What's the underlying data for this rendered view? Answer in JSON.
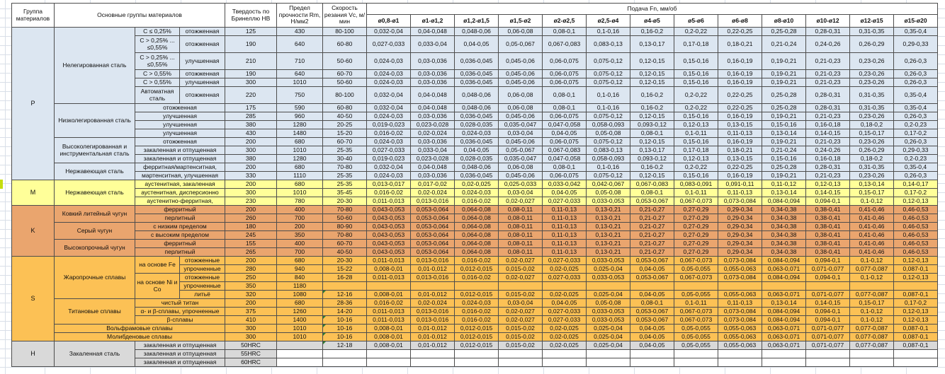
{
  "header": {
    "group": "Группа материалов",
    "main_groups": "Основные группы материалов",
    "hardness": "Твердость по Бринеллю НВ",
    "strength": "Предел прочности Rm, Н/мм2",
    "speed": "Скорость резания Vc, м/мин",
    "feed": "Подача Fn, мм/об",
    "diameters": [
      "ø0,8-ø1",
      "ø1-ø1,2",
      "ø1,2-ø1,5",
      "ø1,5-ø2",
      "ø2-ø2,5",
      "ø2,5-ø4",
      "ø4-ø5",
      "ø5-ø6",
      "ø6-ø8",
      "ø8-ø10",
      "ø10-ø12",
      "ø12-ø15",
      "ø15-ø20"
    ]
  },
  "colors": {
    "group_P": "#dce6f1",
    "group_M": "#ffff99",
    "group_K": "#eaa56e",
    "group_S": "#fcc155",
    "group_H": "#d9d9d9",
    "comment_marker": "#2e7d32",
    "left_highlight": "#c6dd0e",
    "gridline": "#d9dfe8"
  },
  "feed_sets": {
    "A": [
      "0,032-0,04",
      "0,04-0,048",
      "0,048-0,06",
      "0,06-0,08",
      "0,08-0,1",
      "0,1-0,16",
      "0,16-0,2",
      "0,2-0,22",
      "0,22-0,25",
      "0,25-0,28",
      "0,28-0,31",
      "0,31-0,35",
      "0,35-0,4"
    ],
    "B": [
      "0,027-0,033",
      "0,033-0,04",
      "0,04-0,05",
      "0,05-0,067",
      "0,067-0,083",
      "0,083-0,13",
      "0,13-0,17",
      "0,17-0,18",
      "0,18-0,21",
      "0,21-0,24",
      "0,24-0,26",
      "0,26-0,29",
      "0,29-0,33"
    ],
    "C": [
      "0,024-0,03",
      "0,03-0,036",
      "0,036-0,045",
      "0,045-0,06",
      "0,06-0,075",
      "0,075-0,12",
      "0,12-0,15",
      "0,15-0,16",
      "0,16-0,19",
      "0,19-0,21",
      "0,21-0,23",
      "0,23-0,26",
      "0,26-0,3"
    ],
    "D": [
      "0,019-0,023",
      "0,023-0,028",
      "0,028-0,035",
      "0,035-0,047",
      "0,047-0,058",
      "0,058-0,093",
      "0,093-0,12",
      "0,12-0,13",
      "0,13-0,15",
      "0,15-0,16",
      "0,16-0,18",
      "0,18-0,2",
      "0,2-0,23"
    ],
    "E": [
      "0,016-0,02",
      "0,02-0,024",
      "0,024-0,03",
      "0,03-0,04",
      "0,04-0,05",
      "0,05-0,08",
      "0,08-0,1",
      "0,1-0,11",
      "0,11-0,13",
      "0,13-0,14",
      "0,14-0,15",
      "0,15-0,17",
      "0,17-0,2"
    ],
    "F": [
      "0,013-0,017",
      "0,017-0,02",
      "0,02-0,025",
      "0,025-0,033",
      "0,033-0,042",
      "0,042-0,067",
      "0,067-0,083",
      "0,083-0,091",
      "0,091-0,11",
      "0,11-0,12",
      "0,12-0,13",
      "0,13-0,14",
      "0,14-0,17"
    ],
    "G": [
      "0,011-0,013",
      "0,013-0,016",
      "0,016-0,02",
      "0,02-0,027",
      "0,027-0,033",
      "0,033-0,053",
      "0,053-0,067",
      "0,067-0,073",
      "0,073-0,084",
      "0,084-0,094",
      "0,094-0,1",
      "0,1-0,12",
      "0,12-0,13"
    ],
    "H": [
      "0,008-0,01",
      "0,01-0,012",
      "0,012-0,015",
      "0,015-0,02",
      "0,02-0,025",
      "0,025-0,04",
      "0,04-0,05",
      "0,05-0,055",
      "0,055-0,063",
      "0,063-0,071",
      "0,071-0,077",
      "0,077-0,087",
      "0,087-0,1"
    ],
    "K": [
      "0,043-0,053",
      "0,053-0,064",
      "0,064-0,08",
      "0,08-0,11",
      "0,11-0,13",
      "0,13-0,21",
      "0,21-0,27",
      "0,27-0,29",
      "0,29-0,34",
      "0,34-0,38",
      "0,38-0,41",
      "0,41-0,46",
      "0,46-0,53"
    ],
    "X": [
      "",
      "",
      "",
      "",
      "",
      "",
      "",
      "",
      "",
      "",
      "",
      "",
      ""
    ]
  },
  "rows": [
    {
      "g": "P",
      "left": [
        {
          "t": "P",
          "rs": 15,
          "name": "group-cell",
          "cls": "glab"
        },
        {
          "t": "Нелегированная сталь",
          "rs": 6,
          "name": "family-cell",
          "cls": "wrap"
        },
        {
          "t": "C ≤ 0,25%",
          "name": "subgroup-cell",
          "cls": "wrap"
        },
        {
          "t": "отожженная",
          "name": "treatment-cell"
        }
      ],
      "hb": "125",
      "rm": "430",
      "vc": "80-100",
      "feeds": "A"
    },
    {
      "g": "P",
      "h2": 1,
      "left": [
        {
          "t": "C > 0,25% ... ≤0,55%",
          "name": "subgroup-cell",
          "cls": "wrap"
        },
        {
          "t": "отожженная",
          "name": "treatment-cell"
        }
      ],
      "hb": "190",
      "rm": "640",
      "vc": "60-80",
      "feeds": "B"
    },
    {
      "g": "P",
      "h2": 1,
      "left": [
        {
          "t": "C > 0,25% ... ≤0,55%",
          "name": "subgroup-cell",
          "cls": "wrap"
        },
        {
          "t": "улучшенная",
          "name": "treatment-cell"
        }
      ],
      "hb": "210",
      "rm": "710",
      "vc": "50-60",
      "feeds": "C"
    },
    {
      "g": "P",
      "left": [
        {
          "t": "C > 0,55%",
          "name": "subgroup-cell"
        },
        {
          "t": "отожженная",
          "name": "treatment-cell"
        }
      ],
      "hb": "190",
      "rm": "640",
      "vc": "60-70",
      "feeds": "C"
    },
    {
      "g": "P",
      "left": [
        {
          "t": "C > 0,55%",
          "name": "subgroup-cell"
        },
        {
          "t": "улучшенная",
          "name": "treatment-cell"
        }
      ],
      "hb": "300",
      "rm": "1010",
      "vc": "50-60",
      "feeds": "C"
    },
    {
      "g": "P",
      "h2": 1,
      "left": [
        {
          "t": "Автоматная сталь",
          "name": "subgroup-cell",
          "cls": "wrap"
        },
        {
          "t": "отожженная",
          "name": "treatment-cell"
        }
      ],
      "hb": "220",
      "rm": "750",
      "vc": "80-100",
      "feeds": "A"
    },
    {
      "g": "P",
      "left": [
        {
          "t": "Низколегированная сталь",
          "rs": 4,
          "name": "family-cell",
          "cls": "wrap"
        },
        {
          "t": "отожженная",
          "cs": 2,
          "name": "treatment-cell"
        }
      ],
      "hb": "175",
      "rm": "590",
      "vc": "60-80",
      "feeds": "A"
    },
    {
      "g": "P",
      "left": [
        {
          "t": "улучшенная",
          "cs": 2,
          "name": "treatment-cell"
        }
      ],
      "hb": "285",
      "rm": "960",
      "vc": "40-50",
      "feeds": "C"
    },
    {
      "g": "P",
      "left": [
        {
          "t": "улучшенная",
          "cs": 2,
          "name": "treatment-cell"
        }
      ],
      "hb": "380",
      "rm": "1280",
      "vc": "20-25",
      "feeds": "D"
    },
    {
      "g": "P",
      "left": [
        {
          "t": "улучшенная",
          "cs": 2,
          "name": "treatment-cell"
        }
      ],
      "hb": "430",
      "rm": "1480",
      "vc": "15-20",
      "feeds": "E"
    },
    {
      "g": "P",
      "left": [
        {
          "t": "Высоколегированная и инструментальная сталь",
          "rs": 3,
          "name": "family-cell",
          "cls": "wrap"
        },
        {
          "t": "отожженная",
          "cs": 2,
          "name": "treatment-cell"
        }
      ],
      "hb": "200",
      "rm": "680",
      "vc": "60-70",
      "feeds": "C"
    },
    {
      "g": "P",
      "left": [
        {
          "t": "закаленная и отпущенная",
          "cs": 2,
          "name": "treatment-cell"
        }
      ],
      "hb": "300",
      "rm": "1010",
      "vc": "25-35",
      "feeds": "B"
    },
    {
      "g": "P",
      "left": [
        {
          "t": "закаленная и отпущенная",
          "cs": 2,
          "name": "treatment-cell"
        }
      ],
      "hb": "380",
      "rm": "1280",
      "vc": "30-40",
      "feeds": "D"
    },
    {
      "g": "P",
      "left": [
        {
          "t": "Нержавеющая сталь",
          "rs": 2,
          "name": "family-cell",
          "cls": "wrap"
        },
        {
          "t": "ферритная/мартенситная,",
          "cs": 2,
          "name": "treatment-cell"
        }
      ],
      "hb": "200",
      "rm": "680",
      "vc": "70-80",
      "feeds": "A"
    },
    {
      "g": "P",
      "left": [
        {
          "t": "мартенситная, улучшенная",
          "cs": 2,
          "name": "treatment-cell"
        }
      ],
      "hb": "330",
      "rm": "1110",
      "vc": "25-35",
      "feeds": "C"
    },
    {
      "g": "M",
      "left": [
        {
          "t": "M",
          "rs": 3,
          "name": "group-cell",
          "cls": "glab"
        },
        {
          "t": "Нержавеющая сталь",
          "rs": 3,
          "name": "family-cell",
          "cls": "wrap"
        },
        {
          "t": "аустенитная, закаленная",
          "cs": 2,
          "name": "treatment-cell"
        }
      ],
      "hb": "200",
      "rm": "680",
      "vc": "25-35",
      "feeds": "F"
    },
    {
      "g": "M",
      "left": [
        {
          "t": "аустенитная, дисперсионно",
          "cs": 2,
          "name": "treatment-cell"
        }
      ],
      "hb": "300",
      "rm": "1010",
      "vc": "35-45",
      "feeds": "E"
    },
    {
      "g": "M",
      "left": [
        {
          "t": "аустенитно-ферритная,",
          "cs": 2,
          "name": "treatment-cell"
        }
      ],
      "hb": "230",
      "rm": "780",
      "vc": "20-30",
      "feeds": "G"
    },
    {
      "g": "K",
      "left": [
        {
          "t": "K",
          "rs": 6,
          "name": "group-cell",
          "cls": "glab"
        },
        {
          "t": "Ковкий литейный чугун",
          "rs": 2,
          "name": "family-cell",
          "cls": "wrap"
        },
        {
          "t": "ферритный",
          "cs": 2,
          "name": "treatment-cell"
        }
      ],
      "hb": "200",
      "rm": "400",
      "vc": "70-80",
      "feeds": "K"
    },
    {
      "g": "K",
      "left": [
        {
          "t": "перлитный",
          "cs": 2,
          "name": "treatment-cell"
        }
      ],
      "hb": "260",
      "rm": "700",
      "vc": "50-60",
      "feeds": "K"
    },
    {
      "g": "K",
      "left": [
        {
          "t": "Серый чугун",
          "rs": 2,
          "name": "family-cell",
          "cls": "wrap"
        },
        {
          "t": "с низким пределом",
          "cs": 2,
          "name": "treatment-cell"
        }
      ],
      "hb": "180",
      "rm": "200",
      "vc": "80-90",
      "feeds": "K"
    },
    {
      "g": "K",
      "left": [
        {
          "t": "с высоким пределом",
          "cs": 2,
          "name": "treatment-cell"
        }
      ],
      "hb": "245",
      "rm": "350",
      "vc": "70-80",
      "feeds": "K"
    },
    {
      "g": "K",
      "left": [
        {
          "t": "Высокопрочный чугун",
          "rs": 2,
          "name": "family-cell",
          "cls": "wrap"
        },
        {
          "t": "ферритный",
          "cs": 2,
          "name": "treatment-cell"
        }
      ],
      "hb": "155",
      "rm": "400",
      "vc": "60-70",
      "feeds": "K"
    },
    {
      "g": "K",
      "left": [
        {
          "t": "перлитный",
          "cs": 2,
          "name": "treatment-cell"
        }
      ],
      "hb": "265",
      "rm": "700",
      "vc": "40-50",
      "feeds": "K"
    },
    {
      "g": "S",
      "left": [
        {
          "t": "S",
          "rs": 10,
          "name": "group-cell",
          "cls": "glab"
        },
        {
          "t": "Жаропрочные сплавы",
          "rs": 5,
          "name": "family-cell",
          "cls": "wrap"
        },
        {
          "t": "на основе Fe",
          "rs": 2,
          "name": "subgroup-cell",
          "cls": "wrap"
        },
        {
          "t": "отожженные",
          "name": "treatment-cell"
        }
      ],
      "hb": "200",
      "rm": "680",
      "vc": "20-30",
      "feeds": "G"
    },
    {
      "g": "S",
      "left": [
        {
          "t": "упрочненные",
          "name": "treatment-cell"
        }
      ],
      "hb": "280",
      "rm": "940",
      "vc": "15-22",
      "feeds": "H"
    },
    {
      "g": "S",
      "left": [
        {
          "t": "на основе Ni и Co",
          "rs": 3,
          "name": "subgroup-cell",
          "cls": "wrap"
        },
        {
          "t": "отожженные",
          "name": "treatment-cell"
        }
      ],
      "hb": "250",
      "rm": "840",
      "vc": "16-28",
      "feeds": "G"
    },
    {
      "g": "S",
      "left": [
        {
          "t": "упрочненные",
          "name": "treatment-cell"
        }
      ],
      "hb": "350",
      "rm": "1180",
      "vc": "",
      "feeds": "X"
    },
    {
      "g": "S",
      "left": [
        {
          "t": "литьё",
          "name": "treatment-cell"
        }
      ],
      "hb": "320",
      "rm": "1080",
      "vc": "12-16",
      "vm": 1,
      "feeds": "H"
    },
    {
      "g": "S",
      "left": [
        {
          "t": "Титановые сплавы",
          "rs": 3,
          "name": "family-cell",
          "cls": "wrap"
        },
        {
          "t": "чистый титан",
          "cs": 2,
          "name": "treatment-cell"
        }
      ],
      "hb": "200",
      "rm": "680",
      "vc": "28-36",
      "feeds": "E"
    },
    {
      "g": "S",
      "left": [
        {
          "t": "α- и β-сплавы, упрочненные",
          "cs": 2,
          "name": "treatment-cell"
        }
      ],
      "hb": "375",
      "rm": "1260",
      "vc": "14-20",
      "feeds": "G"
    },
    {
      "g": "S",
      "left": [
        {
          "t": "β-сплавы",
          "cs": 2,
          "name": "treatment-cell"
        }
      ],
      "hb": "410",
      "rm": "1400",
      "vc": "10-16",
      "vm": 1,
      "feeds": "G"
    },
    {
      "g": "S",
      "left": [
        {
          "t": "Вольфрамовые сплавы",
          "cs": 3,
          "name": "family-cell"
        }
      ],
      "hb": "300",
      "rm": "1010",
      "vc": "10-16",
      "vm": 1,
      "feeds": "H"
    },
    {
      "g": "S",
      "left": [
        {
          "t": "Молибденовые сплавы",
          "cs": 3,
          "name": "family-cell"
        }
      ],
      "hb": "300",
      "rm": "1010",
      "vc": "10-16",
      "vm": 1,
      "feeds": "H"
    },
    {
      "g": "H",
      "left": [
        {
          "t": "H",
          "rs": 3,
          "name": "group-cell",
          "cls": "glab"
        },
        {
          "t": "Закаленная сталь",
          "rs": 3,
          "name": "family-cell",
          "cls": "wrap"
        },
        {
          "t": "закаленная и отпущенная",
          "cs": 2,
          "name": "treatment-cell"
        }
      ],
      "hb": "50HRC",
      "rm": "",
      "vc": "12-18",
      "vm": 1,
      "feeds": "H"
    },
    {
      "g": "H",
      "left": [
        {
          "t": "закаленная и отпущенная",
          "cs": 2,
          "name": "treatment-cell"
        }
      ],
      "hb": "55HRC",
      "rm": "",
      "vc": "",
      "feeds": "X",
      "wl": 1
    },
    {
      "g": "H",
      "left": [
        {
          "t": "закаленная и отпущенная",
          "cs": 2,
          "name": "treatment-cell"
        }
      ],
      "hb": "60HRC",
      "rm": "",
      "vc": "",
      "feeds": "X",
      "wl": 1
    }
  ]
}
